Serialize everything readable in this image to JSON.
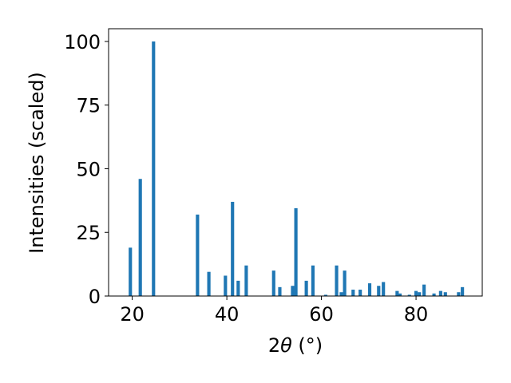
{
  "chart_data": {
    "type": "bar",
    "xlabel": "2θ (°)",
    "xlabel_parts": {
      "prefix": "2",
      "theta": "θ",
      "unit": " (°)"
    },
    "ylabel": "Intensities (scaled)",
    "xlim": [
      15,
      94
    ],
    "ylim": [
      0,
      105
    ],
    "x_ticks": [
      20,
      40,
      60,
      80
    ],
    "y_ticks": [
      0,
      25,
      50,
      75,
      100
    ],
    "x_tick_labels": [
      "20",
      "40",
      "60",
      "80"
    ],
    "y_tick_labels": [
      "0",
      "25",
      "50",
      "75",
      "100"
    ],
    "grid": false,
    "bar_color": "#1f77b4",
    "bar_width": 0.7,
    "x": [
      19.6,
      21.7,
      24.5,
      33.8,
      36.2,
      39.7,
      41.2,
      42.4,
      44.1,
      49.9,
      51.2,
      53.9,
      54.6,
      56.8,
      58.2,
      60.9,
      63.2,
      64.2,
      64.9,
      66.7,
      68.2,
      70.2,
      72.1,
      73.1,
      76.0,
      76.6,
      78.6,
      80.0,
      80.7,
      81.7,
      83.8,
      85.2,
      86.2,
      89.0,
      89.8
    ],
    "values": [
      19,
      46,
      100,
      32,
      9.5,
      8,
      37,
      6,
      12,
      10,
      3.5,
      4,
      34.5,
      6,
      12,
      0.5,
      12,
      1.5,
      10,
      2.5,
      2.5,
      5,
      4,
      5.5,
      2,
      1,
      0.5,
      2,
      1.5,
      4.5,
      1,
      2,
      1.5,
      1.5,
      3.5
    ]
  }
}
